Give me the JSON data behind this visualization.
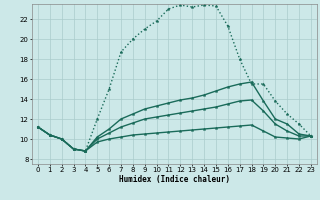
{
  "xlabel": "Humidex (Indice chaleur)",
  "bg_color": "#cce8e8",
  "grid_color": "#aacccc",
  "line_color": "#1a6b5a",
  "xlim": [
    -0.5,
    23.5
  ],
  "ylim": [
    7.5,
    23.5
  ],
  "xticks": [
    0,
    1,
    2,
    3,
    4,
    5,
    6,
    7,
    8,
    9,
    10,
    11,
    12,
    13,
    14,
    15,
    16,
    17,
    18,
    19,
    20,
    21,
    22,
    23
  ],
  "yticks": [
    8,
    10,
    12,
    14,
    16,
    18,
    20,
    22
  ],
  "lines": [
    {
      "x": [
        0,
        1,
        2,
        3,
        4,
        5,
        6,
        7,
        8,
        9,
        10,
        11,
        12,
        13,
        14,
        15,
        16,
        17,
        18,
        19,
        20,
        21,
        22,
        23
      ],
      "y": [
        11.2,
        10.4,
        10.0,
        9.0,
        8.8,
        12.0,
        15.0,
        18.7,
        20.0,
        21.0,
        21.8,
        23.0,
        23.4,
        23.2,
        23.4,
        23.3,
        21.3,
        18.0,
        15.5,
        15.5,
        13.8,
        12.5,
        11.5,
        10.3
      ],
      "linestyle": ":",
      "linewidth": 1.0
    },
    {
      "x": [
        0,
        1,
        2,
        3,
        4,
        5,
        6,
        7,
        8,
        9,
        10,
        11,
        12,
        13,
        14,
        15,
        16,
        17,
        18,
        19,
        20,
        21,
        22,
        23
      ],
      "y": [
        11.2,
        10.4,
        10.0,
        9.0,
        8.8,
        10.2,
        11.0,
        12.0,
        12.5,
        13.0,
        13.3,
        13.6,
        13.9,
        14.1,
        14.4,
        14.8,
        15.2,
        15.5,
        15.7,
        13.8,
        12.0,
        11.5,
        10.5,
        10.3
      ],
      "linestyle": "-",
      "linewidth": 1.0
    },
    {
      "x": [
        0,
        1,
        2,
        3,
        4,
        5,
        6,
        7,
        8,
        9,
        10,
        11,
        12,
        13,
        14,
        15,
        16,
        17,
        18,
        19,
        20,
        21,
        22,
        23
      ],
      "y": [
        11.2,
        10.4,
        10.0,
        9.0,
        8.8,
        10.0,
        10.6,
        11.2,
        11.6,
        12.0,
        12.2,
        12.4,
        12.6,
        12.8,
        13.0,
        13.2,
        13.5,
        13.8,
        13.9,
        12.8,
        11.5,
        10.8,
        10.3,
        10.3
      ],
      "linestyle": "-",
      "linewidth": 1.0
    },
    {
      "x": [
        0,
        1,
        2,
        3,
        4,
        5,
        6,
        7,
        8,
        9,
        10,
        11,
        12,
        13,
        14,
        15,
        16,
        17,
        18,
        19,
        20,
        21,
        22,
        23
      ],
      "y": [
        11.2,
        10.4,
        10.0,
        9.0,
        8.8,
        9.7,
        10.0,
        10.2,
        10.4,
        10.5,
        10.6,
        10.7,
        10.8,
        10.9,
        11.0,
        11.1,
        11.2,
        11.3,
        11.4,
        10.8,
        10.2,
        10.1,
        10.0,
        10.3
      ],
      "linestyle": "-",
      "linewidth": 1.0
    }
  ]
}
